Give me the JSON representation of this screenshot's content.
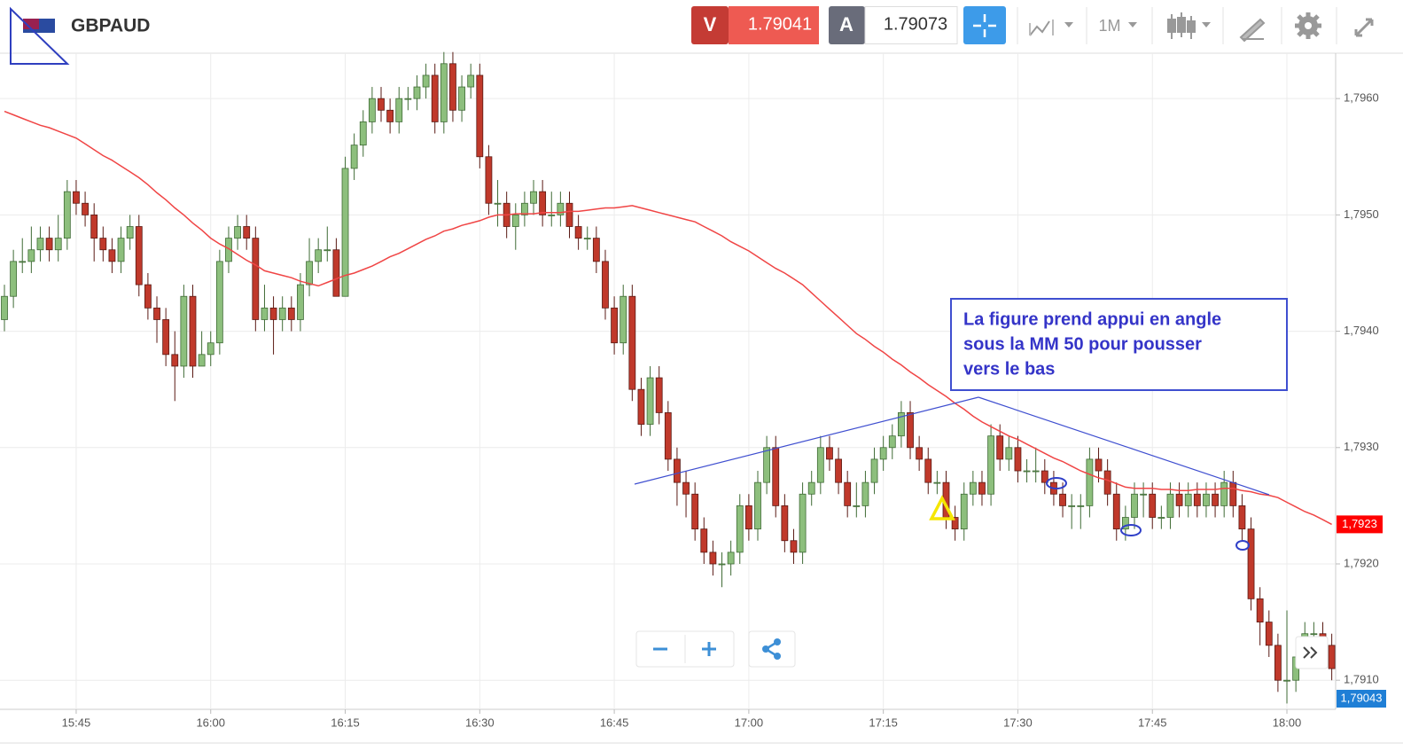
{
  "header": {
    "symbol": "GBPAUD",
    "bid_label": "V",
    "bid": "1.79041",
    "ask_label": "A",
    "ask": "1.79073",
    "timeframe": "1M"
  },
  "chart_data": {
    "type": "candlestick",
    "categories": [
      null,
      null,
      null,
      null,
      null,
      null,
      null,
      null,
      "15:45",
      null,
      null,
      null,
      null,
      null,
      null,
      null,
      null,
      null,
      null,
      null,
      null,
      null,
      null,
      "16:00",
      null,
      null,
      null,
      null,
      null,
      null,
      null,
      null,
      null,
      null,
      null,
      null,
      null,
      null,
      "16:15",
      null,
      null,
      null,
      null,
      null,
      null,
      null,
      null,
      null,
      null,
      null,
      null,
      null,
      null,
      "16:30",
      null,
      null,
      null,
      null,
      null,
      null,
      null,
      null,
      null,
      null,
      null,
      null,
      null,
      null,
      "16:45",
      null,
      null,
      null,
      null,
      null,
      null,
      null,
      null,
      null,
      null,
      null,
      null,
      null,
      null,
      "17:00",
      null,
      null,
      null,
      null,
      null,
      null,
      null,
      null,
      null,
      null,
      null,
      null,
      null,
      null,
      "17:15",
      null,
      null,
      null,
      null,
      null,
      null,
      null,
      null,
      null,
      null,
      null,
      null,
      null,
      null,
      "17:30",
      null,
      null,
      null,
      null,
      null,
      null,
      null,
      null,
      null,
      null,
      null,
      null,
      null,
      null,
      "17:45",
      null,
      null,
      null,
      null,
      null,
      null,
      null,
      null,
      null,
      null,
      null,
      null,
      null,
      null,
      "18:00",
      null,
      null,
      null,
      null,
      null
    ],
    "open": [
      1.7941,
      1.7943,
      1.7946,
      1.7946,
      1.7947,
      1.7948,
      1.7947,
      1.7948,
      1.7952,
      1.7951,
      1.795,
      1.7948,
      1.7947,
      1.7946,
      1.7948,
      1.7949,
      1.7944,
      1.7942,
      1.7941,
      1.7938,
      1.7937,
      1.7943,
      1.7937,
      1.7938,
      1.7939,
      1.7946,
      1.7948,
      1.7949,
      1.7948,
      1.7941,
      1.7942,
      1.7941,
      1.7942,
      1.7941,
      1.7944,
      1.7946,
      1.7947,
      1.7947,
      1.7943,
      1.7954,
      1.7956,
      1.7958,
      1.796,
      1.7959,
      1.7958,
      1.796,
      1.796,
      1.7961,
      1.7962,
      1.7958,
      1.7963,
      1.7959,
      1.7961,
      1.7962,
      1.7955,
      1.7951,
      1.7951,
      1.7949,
      1.795,
      1.7951,
      1.7952,
      1.795,
      1.795,
      1.7951,
      1.7949,
      1.7948,
      1.7948,
      1.7946,
      1.7942,
      1.7939,
      1.7943,
      1.7935,
      1.7932,
      1.7936,
      1.7933,
      1.7929,
      1.7927,
      1.7926,
      1.7923,
      1.7921,
      1.792,
      1.792,
      1.7921,
      1.7925,
      1.7923,
      1.7927,
      1.793,
      1.7925,
      1.7922,
      1.7921,
      1.7926,
      1.7927,
      1.793,
      1.7929,
      1.7927,
      1.7925,
      1.7925,
      1.7927,
      1.7929,
      1.793,
      1.7931,
      1.7933,
      1.793,
      1.7929,
      1.7927,
      1.7927,
      1.7924,
      1.7923,
      1.7926,
      1.7927,
      1.7926,
      1.7931,
      1.7929,
      1.793,
      1.7928,
      1.7928,
      1.7928,
      1.7927,
      1.7926,
      1.7925,
      1.7925,
      1.7925,
      1.7929,
      1.7928,
      1.7926,
      1.7923,
      1.7924,
      1.7926,
      1.7926,
      1.7924,
      1.7924,
      1.7926,
      1.7925,
      1.7926,
      1.7925,
      1.7926,
      1.7925,
      1.7927,
      1.7925,
      1.7923,
      1.7917,
      1.7915,
      1.7913,
      1.791,
      1.791,
      1.7912,
      1.7914,
      1.7914,
      1.7913
    ],
    "high": [
      1.7944,
      1.7947,
      1.7948,
      1.7949,
      1.7949,
      1.7949,
      1.795,
      1.7953,
      1.7953,
      1.7952,
      1.7951,
      1.7949,
      1.7948,
      1.7949,
      1.795,
      1.795,
      1.7945,
      1.7943,
      1.7942,
      1.794,
      1.7944,
      1.7944,
      1.794,
      1.794,
      1.7947,
      1.7949,
      1.795,
      1.795,
      1.7949,
      1.7944,
      1.7943,
      1.7943,
      1.7943,
      1.7945,
      1.7948,
      1.7948,
      1.7949,
      1.7948,
      1.7955,
      1.7957,
      1.7959,
      1.7961,
      1.7961,
      1.796,
      1.7961,
      1.7961,
      1.7962,
      1.7963,
      1.7963,
      1.7964,
      1.7964,
      1.7962,
      1.7963,
      1.7963,
      1.7956,
      1.7953,
      1.7952,
      1.7951,
      1.7952,
      1.7953,
      1.7953,
      1.7952,
      1.7952,
      1.7952,
      1.795,
      1.7949,
      1.7949,
      1.7947,
      1.7943,
      1.7944,
      1.7944,
      1.7936,
      1.7937,
      1.7937,
      1.7934,
      1.793,
      1.7928,
      1.7927,
      1.7924,
      1.7922,
      1.7921,
      1.7922,
      1.7926,
      1.7926,
      1.7928,
      1.7931,
      1.7931,
      1.7926,
      1.7923,
      1.7927,
      1.7928,
      1.7931,
      1.7931,
      1.793,
      1.7928,
      1.7927,
      1.7928,
      1.793,
      1.7931,
      1.7932,
      1.7934,
      1.7934,
      1.7931,
      1.793,
      1.7928,
      1.7928,
      1.7925,
      1.7927,
      1.7928,
      1.7928,
      1.7932,
      1.7932,
      1.7931,
      1.7931,
      1.7929,
      1.793,
      1.7929,
      1.7928,
      1.7927,
      1.7926,
      1.7926,
      1.793,
      1.793,
      1.7929,
      1.7927,
      1.7925,
      1.7927,
      1.7927,
      1.7927,
      1.7925,
      1.7927,
      1.7927,
      1.7927,
      1.7927,
      1.7927,
      1.7927,
      1.7928,
      1.7928,
      1.7926,
      1.7924,
      1.7918,
      1.7916,
      1.7914,
      1.7916,
      1.7913,
      1.7915,
      1.7915,
      1.7915,
      1.7914
    ],
    "low": [
      1.794,
      1.7942,
      1.7945,
      1.7945,
      1.7946,
      1.7946,
      1.7946,
      1.7947,
      1.795,
      1.7949,
      1.7946,
      1.7946,
      1.7945,
      1.7945,
      1.7947,
      1.7943,
      1.7941,
      1.7939,
      1.7937,
      1.7934,
      1.7936,
      1.7936,
      1.7937,
      1.7937,
      1.7938,
      1.7945,
      1.7947,
      1.7947,
      1.794,
      1.794,
      1.7938,
      1.794,
      1.794,
      1.794,
      1.7943,
      1.7945,
      1.7946,
      1.7943,
      1.7943,
      1.7953,
      1.7955,
      1.7957,
      1.7958,
      1.7957,
      1.7957,
      1.7959,
      1.7959,
      1.796,
      1.7957,
      1.7957,
      1.7958,
      1.7958,
      1.796,
      1.7954,
      1.795,
      1.7949,
      1.7948,
      1.7947,
      1.7949,
      1.795,
      1.7949,
      1.7949,
      1.7949,
      1.7948,
      1.7947,
      1.7947,
      1.7945,
      1.7941,
      1.7938,
      1.7938,
      1.7934,
      1.7931,
      1.7931,
      1.7932,
      1.7928,
      1.7925,
      1.7924,
      1.7922,
      1.792,
      1.7919,
      1.7918,
      1.7919,
      1.792,
      1.7922,
      1.7922,
      1.7926,
      1.7924,
      1.7921,
      1.792,
      1.792,
      1.7925,
      1.7926,
      1.7928,
      1.7926,
      1.7924,
      1.7924,
      1.7924,
      1.7926,
      1.7928,
      1.7929,
      1.793,
      1.7929,
      1.7928,
      1.7926,
      1.7926,
      1.7923,
      1.7922,
      1.7922,
      1.7925,
      1.7925,
      1.7925,
      1.7928,
      1.7928,
      1.7927,
      1.7927,
      1.7927,
      1.7926,
      1.7925,
      1.7924,
      1.7923,
      1.7923,
      1.7924,
      1.7927,
      1.7925,
      1.7922,
      1.7922,
      1.7923,
      1.7924,
      1.7923,
      1.7923,
      1.7923,
      1.7924,
      1.7924,
      1.7924,
      1.7924,
      1.7924,
      1.7924,
      1.7924,
      1.7922,
      1.7916,
      1.7913,
      1.7912,
      1.7909,
      1.7908,
      1.7909,
      1.7911,
      1.7912,
      1.7911,
      1.791
    ],
    "close": [
      1.7943,
      1.7946,
      1.7946,
      1.7947,
      1.7948,
      1.7947,
      1.7948,
      1.7952,
      1.7951,
      1.795,
      1.7948,
      1.7947,
      1.7946,
      1.7948,
      1.7949,
      1.7944,
      1.7942,
      1.7941,
      1.7938,
      1.7937,
      1.7943,
      1.7937,
      1.7938,
      1.7939,
      1.7946,
      1.7948,
      1.7949,
      1.7948,
      1.7941,
      1.7942,
      1.7941,
      1.7942,
      1.7941,
      1.7944,
      1.7946,
      1.7947,
      1.7947,
      1.7943,
      1.7954,
      1.7956,
      1.7958,
      1.796,
      1.7959,
      1.7958,
      1.796,
      1.796,
      1.7961,
      1.7962,
      1.7958,
      1.7963,
      1.7959,
      1.7961,
      1.7962,
      1.7955,
      1.7951,
      1.7951,
      1.7949,
      1.795,
      1.7951,
      1.7952,
      1.795,
      1.795,
      1.7951,
      1.7949,
      1.7948,
      1.7948,
      1.7946,
      1.7942,
      1.7939,
      1.7943,
      1.7935,
      1.7932,
      1.7936,
      1.7933,
      1.7929,
      1.7927,
      1.7926,
      1.7923,
      1.7921,
      1.792,
      1.792,
      1.7921,
      1.7925,
      1.7923,
      1.7927,
      1.793,
      1.7925,
      1.7922,
      1.7921,
      1.7926,
      1.7927,
      1.793,
      1.7929,
      1.7927,
      1.7925,
      1.7925,
      1.7927,
      1.7929,
      1.793,
      1.7931,
      1.7933,
      1.793,
      1.7929,
      1.7927,
      1.7927,
      1.7924,
      1.7923,
      1.7926,
      1.7927,
      1.7926,
      1.7931,
      1.7929,
      1.793,
      1.7928,
      1.7928,
      1.7928,
      1.7927,
      1.7926,
      1.7925,
      1.7925,
      1.7925,
      1.7929,
      1.7928,
      1.7926,
      1.7923,
      1.7924,
      1.7926,
      1.7926,
      1.7924,
      1.7924,
      1.7926,
      1.7925,
      1.7926,
      1.7925,
      1.7926,
      1.7925,
      1.7927,
      1.7925,
      1.7923,
      1.7917,
      1.7915,
      1.7913,
      1.791,
      1.791,
      1.7912,
      1.7914,
      1.7914,
      1.7913,
      1.7911
    ],
    "colors": {
      "up": "#8dbf7d",
      "down": "#c0392b",
      "up_edge": "#3f6b35",
      "down_edge": "#5a1a14"
    },
    "ma": {
      "color": "#f04545",
      "values": [
        1.79589,
        1.79586,
        1.79583,
        1.7958,
        1.79577,
        1.79575,
        1.79572,
        1.79569,
        1.79566,
        1.79561,
        1.79556,
        1.79551,
        1.79547,
        1.79542,
        1.79537,
        1.79532,
        1.79526,
        1.79519,
        1.79513,
        1.79506,
        1.795,
        1.79493,
        1.79487,
        1.7948,
        1.79475,
        1.79471,
        1.79466,
        1.79461,
        1.79457,
        1.79452,
        1.7945,
        1.79448,
        1.79446,
        1.79443,
        1.79441,
        1.79439,
        1.79442,
        1.79445,
        1.79448,
        1.7945,
        1.79453,
        1.79456,
        1.7946,
        1.79464,
        1.79467,
        1.79471,
        1.79475,
        1.79479,
        1.79482,
        1.79486,
        1.79488,
        1.79491,
        1.79493,
        1.79495,
        1.79498,
        1.795,
        1.795,
        1.79501,
        1.79501,
        1.79501,
        1.79502,
        1.79502,
        1.79502,
        1.79503,
        1.79503,
        1.79504,
        1.79505,
        1.79506,
        1.79506,
        1.79507,
        1.79508,
        1.79506,
        1.79504,
        1.79502,
        1.795,
        1.79498,
        1.79496,
        1.79494,
        1.7949,
        1.79486,
        1.79482,
        1.79477,
        1.79473,
        1.79469,
        1.79464,
        1.79459,
        1.79454,
        1.7945,
        1.79445,
        1.7944,
        1.79433,
        1.79426,
        1.79419,
        1.79412,
        1.79405,
        1.79398,
        1.79393,
        1.79387,
        1.79382,
        1.79376,
        1.79371,
        1.79365,
        1.7936,
        1.79354,
        1.79349,
        1.79344,
        1.79338,
        1.79333,
        1.79327,
        1.79322,
        1.79318,
        1.79314,
        1.7931,
        1.79307,
        1.79303,
        1.79299,
        1.79295,
        1.79291,
        1.79288,
        1.79284,
        1.7928,
        1.79277,
        1.79274,
        1.79272,
        1.79269,
        1.79266,
        1.79265,
        1.79265,
        1.79265,
        1.79264,
        1.79264,
        1.79263,
        1.79263,
        1.79264,
        1.79264,
        1.79264,
        1.79265,
        1.79265,
        1.79263,
        1.79262,
        1.7926,
        1.79259,
        1.79257,
        1.79253,
        1.79249,
        1.79245,
        1.79242,
        1.79238,
        1.79234
      ]
    },
    "ylim": [
      1.79075,
      1.79639
    ],
    "yticks": [
      {
        "value": 1.791,
        "label": "1,7910"
      },
      {
        "value": 1.792,
        "label": "1,7920"
      },
      {
        "value": 1.793,
        "label": "1,7930"
      },
      {
        "value": 1.794,
        "label": "1,7940"
      },
      {
        "value": 1.795,
        "label": "1,7950"
      },
      {
        "value": 1.796,
        "label": "1,7960"
      }
    ],
    "grid": true,
    "ma_tag": "1,7923",
    "price_tag": "1,79043",
    "annotation": [
      "La figure prend appui en angle",
      "sous la MM 50 pour pousser",
      "vers le bas"
    ]
  }
}
